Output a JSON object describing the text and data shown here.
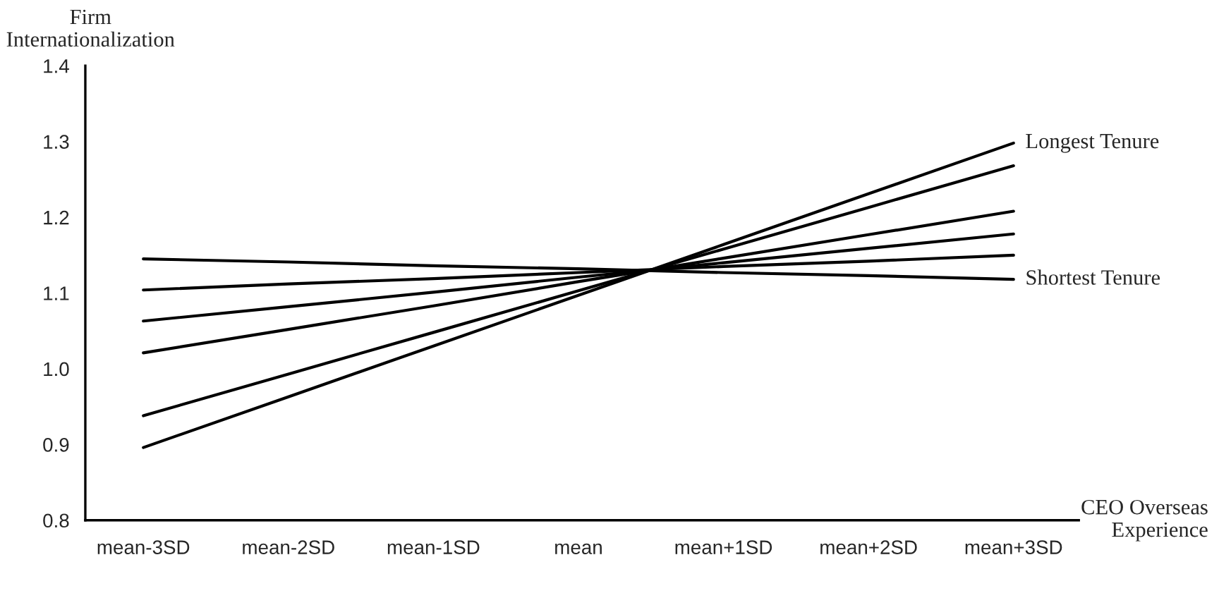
{
  "chart_data": {
    "type": "line",
    "xlabel": "CEO Overseas\nExperience",
    "ylabel": "Firm\nInternationalization",
    "categories": [
      "mean-3SD",
      "mean-2SD",
      "mean-1SD",
      "mean",
      "mean+1SD",
      "mean+2SD",
      "mean+3SD"
    ],
    "series": [
      {
        "name": "Longest Tenure",
        "color": "#000000",
        "values": [
          0.896,
          0.963,
          1.03,
          1.097,
          1.164,
          1.231,
          1.298
        ]
      },
      {
        "color": "#000000",
        "values": [
          0.938,
          0.993,
          1.048,
          1.103,
          1.158,
          1.213,
          1.268
        ]
      },
      {
        "color": "#000000",
        "values": [
          1.021,
          1.052,
          1.083,
          1.115,
          1.146,
          1.177,
          1.208
        ]
      },
      {
        "color": "#000000",
        "values": [
          1.063,
          1.082,
          1.101,
          1.121,
          1.14,
          1.159,
          1.178
        ]
      },
      {
        "color": "#000000",
        "values": [
          1.104,
          1.112,
          1.119,
          1.127,
          1.135,
          1.142,
          1.15
        ]
      },
      {
        "name": "Shortest Tenure",
        "color": "#000000",
        "values": [
          1.145,
          1.141,
          1.136,
          1.132,
          1.127,
          1.123,
          1.118
        ]
      }
    ],
    "ylim": [
      0.8,
      1.4
    ],
    "yticks": [
      0.8,
      0.9,
      {
        "value": 1.0,
        "label": "1.0"
      },
      1.1,
      1.2,
      1.3,
      1.4
    ],
    "grid": false,
    "legend": false,
    "marker": "none",
    "line_style": "solid"
  }
}
